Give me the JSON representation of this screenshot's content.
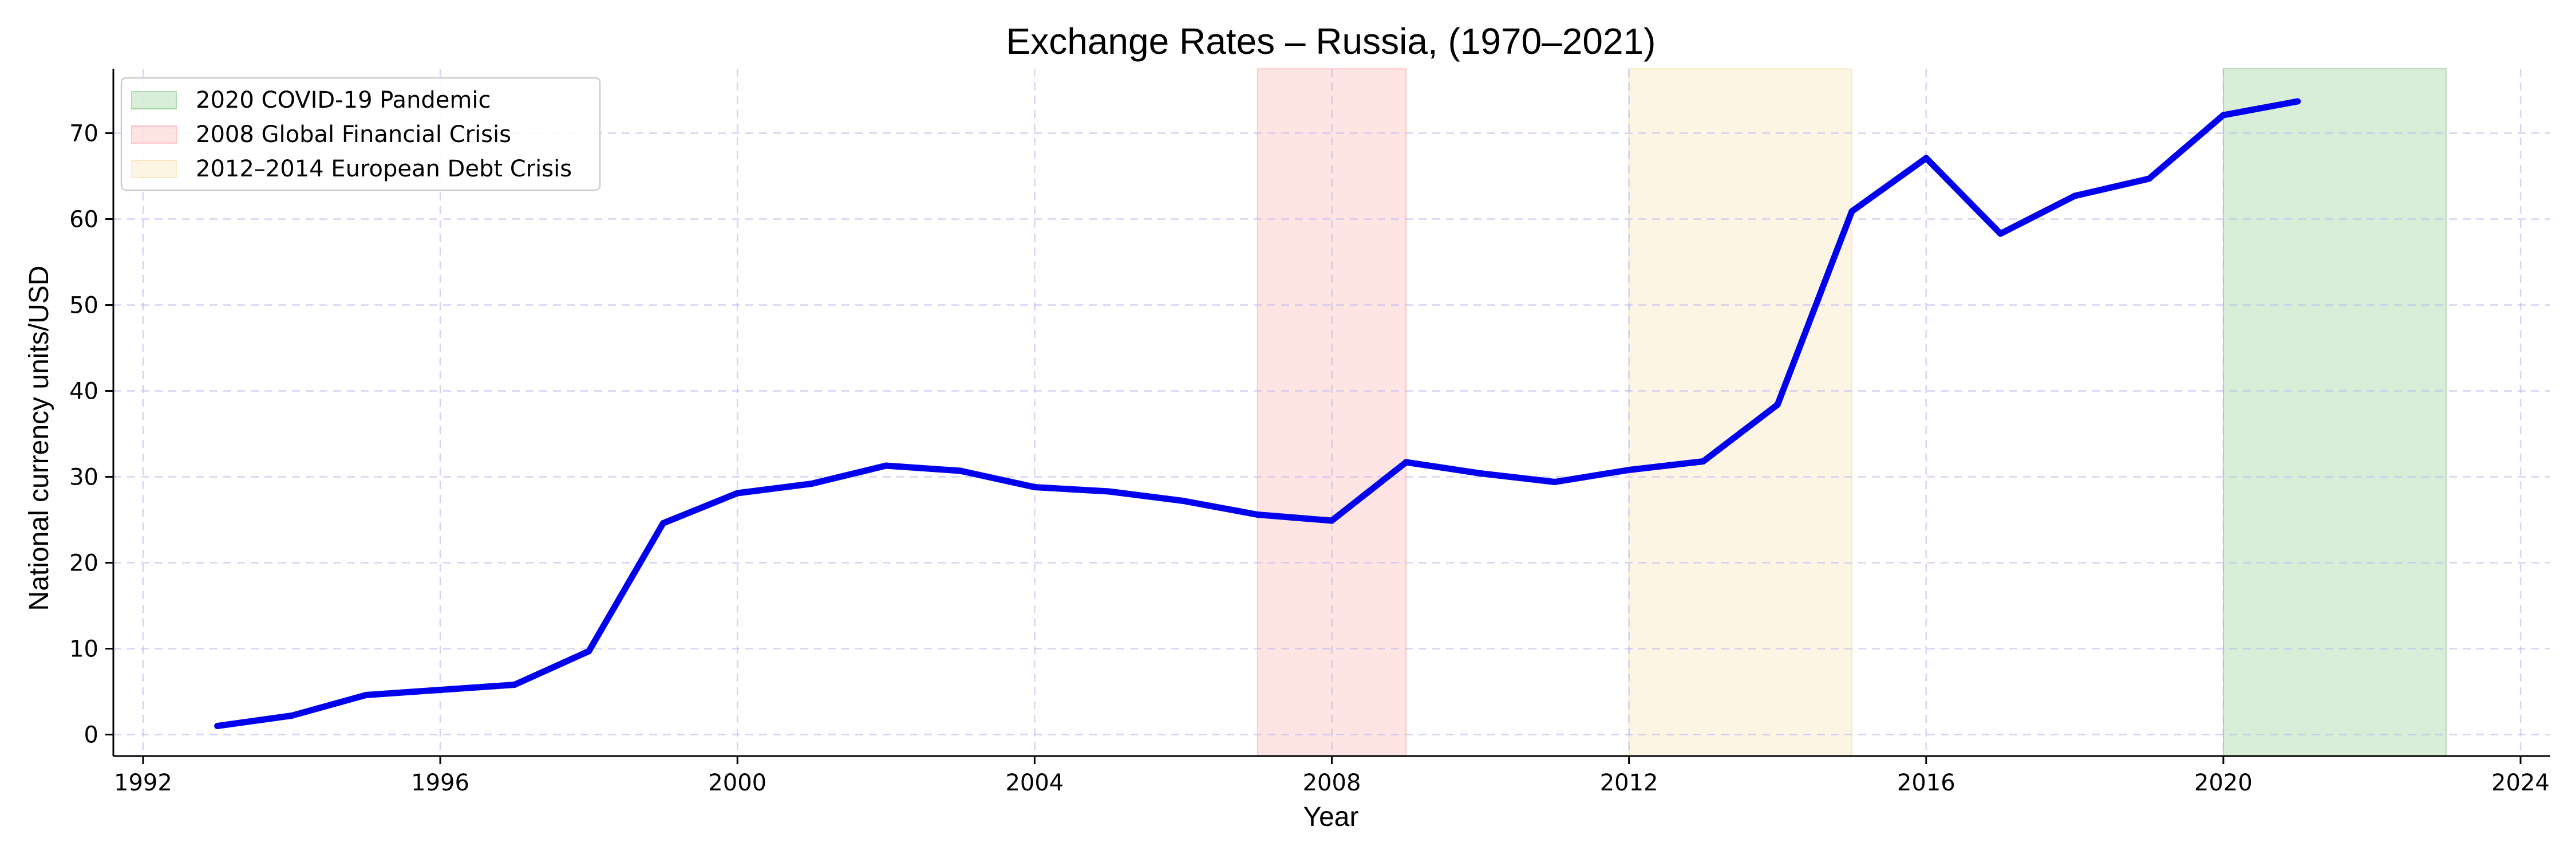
{
  "chart_data": {
    "type": "line",
    "title": "Exchange Rates – Russia, (1970–2021)",
    "xlabel": "Year",
    "ylabel": "National currency units/USD",
    "xlim": [
      1991.6,
      2024.4
    ],
    "ylim": [
      -2.5,
      77.5
    ],
    "x_ticks": [
      1992,
      1996,
      2000,
      2004,
      2008,
      2012,
      2016,
      2020,
      2024
    ],
    "y_ticks": [
      0,
      10,
      20,
      30,
      40,
      50,
      60,
      70
    ],
    "grid": true,
    "legend_position": "top-left",
    "series": [
      {
        "x": [
          1993,
          1994,
          1995,
          1996,
          1997,
          1998,
          1999,
          2000,
          2001,
          2002,
          2003,
          2004,
          2005,
          2006,
          2007,
          2008,
          2009,
          2010,
          2011,
          2012,
          2013,
          2014,
          2015,
          2016,
          2017,
          2018,
          2019,
          2020,
          2021
        ],
        "values": [
          1.0,
          2.2,
          4.6,
          5.2,
          5.8,
          9.7,
          24.6,
          28.1,
          29.2,
          31.3,
          30.7,
          28.8,
          28.3,
          27.2,
          25.6,
          24.9,
          31.7,
          30.4,
          29.4,
          30.8,
          31.8,
          38.4,
          60.9,
          67.1,
          58.3,
          62.7,
          64.7,
          72.1,
          73.7
        ],
        "color": "#0000ee"
      }
    ],
    "shaded_periods": [
      {
        "label": "2020 COVID-19 Pandemic",
        "start": 2020,
        "end": 2023,
        "color": "#2ca02c"
      },
      {
        "label": "2008 Global Financial Crisis",
        "start": 2007,
        "end": 2009,
        "color": "#ff6b6b"
      },
      {
        "label": "2012–2014 European Debt Crisis",
        "start": 2012,
        "end": 2015,
        "color": "#f5c767"
      }
    ]
  }
}
